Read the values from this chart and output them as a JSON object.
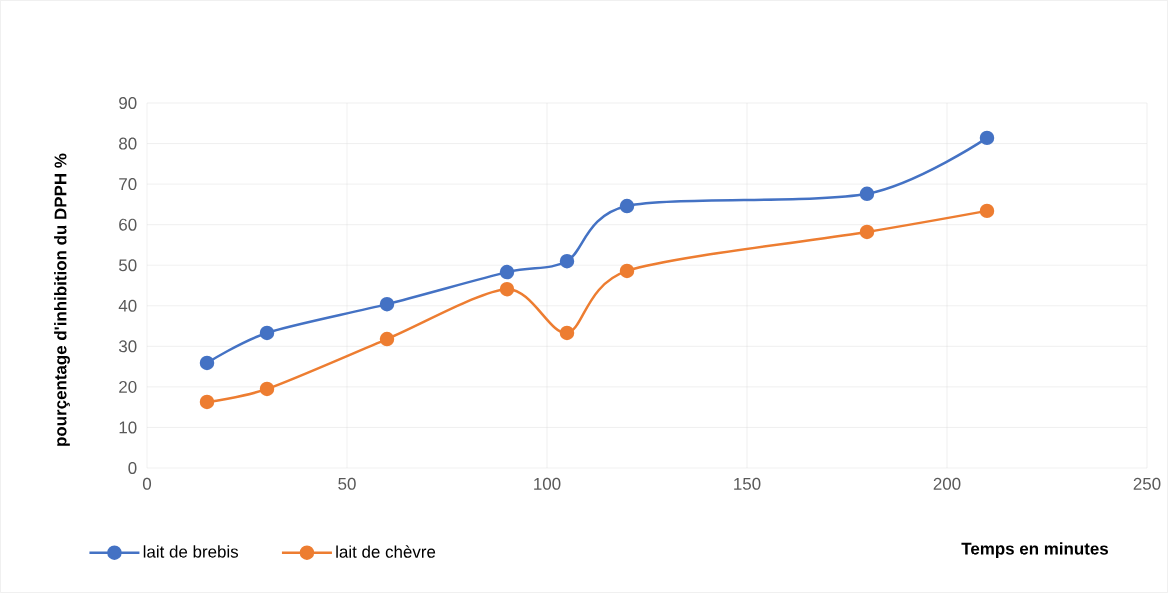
{
  "chart_data": {
    "type": "line",
    "xlabel": "Temps en minutes",
    "ylabel": "pourçentage d'inhibition du  DPPH %",
    "x": [
      15,
      30,
      60,
      90,
      105,
      120,
      180,
      210
    ],
    "series": [
      {
        "name": "lait de brebis",
        "color": "#4472c4",
        "values": [
          25.9,
          33.3,
          40.4,
          48.3,
          51.0,
          64.6,
          67.6,
          81.4
        ]
      },
      {
        "name": "lait de chèvre",
        "color": "#ed7d31",
        "values": [
          16.3,
          19.5,
          31.8,
          44.1,
          33.3,
          48.6,
          58.2,
          63.4
        ]
      }
    ],
    "xlim": [
      0,
      250
    ],
    "xticks": [
      0,
      50,
      100,
      150,
      200,
      250
    ],
    "ylim": [
      0,
      90
    ],
    "yticks": [
      0,
      10,
      20,
      30,
      40,
      50,
      60,
      70,
      80,
      90
    ],
    "grid": true,
    "legend": "bottom",
    "marker": "circle",
    "line_style": "solid"
  }
}
